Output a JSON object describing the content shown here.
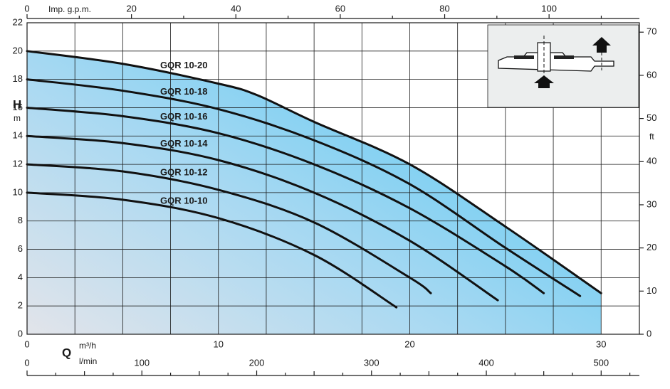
{
  "chart_data": {
    "type": "line",
    "xlabel": "Q",
    "xunit": "m³/h",
    "xlim": [
      0,
      32
    ],
    "xticks": [
      0,
      10,
      20,
      30
    ],
    "ylabel": "H",
    "yunit": "m",
    "ylim": [
      0,
      22
    ],
    "yticks": [
      0,
      2,
      4,
      6,
      8,
      10,
      12,
      14,
      16,
      18,
      20,
      22
    ],
    "y2label": "ft",
    "y2lim": [
      0,
      72.18
    ],
    "y2ticks": [
      0,
      10,
      20,
      30,
      40,
      50,
      60,
      70
    ],
    "x2label": "Imp. g.p.m.",
    "x2lim": [
      0,
      117.3
    ],
    "x2ticks": [
      0,
      20,
      40,
      60,
      80,
      100
    ],
    "x3label": "l/min",
    "x3lim": [
      0,
      533.3
    ],
    "x3ticks": [
      0,
      100,
      200,
      300,
      400,
      500
    ],
    "grid": true,
    "color": "#111111",
    "fill_color": "#5ac8f2",
    "series": [
      {
        "name": "GQR 10-20",
        "x": [
          0,
          5,
          10,
          12,
          15,
          20,
          25,
          30
        ],
        "values": [
          20,
          19.1,
          17.7,
          16.9,
          15,
          12,
          7.6,
          2.9
        ]
      },
      {
        "name": "GQR 10-18",
        "x": [
          0,
          5,
          10,
          15,
          20,
          25,
          28.9
        ],
        "values": [
          18,
          17.2,
          15.9,
          13.7,
          10.6,
          6.1,
          2.7
        ]
      },
      {
        "name": "GQR 10-16",
        "x": [
          0,
          5,
          10,
          15,
          20,
          25,
          27
        ],
        "values": [
          16,
          15.4,
          14.2,
          12,
          8.9,
          4.8,
          2.9
        ]
      },
      {
        "name": "GQR 10-14",
        "x": [
          0,
          5,
          10,
          15,
          20,
          24.6
        ],
        "values": [
          14,
          13.5,
          12.3,
          10,
          6.6,
          2.4
        ]
      },
      {
        "name": "GQR 10-12",
        "x": [
          0,
          5,
          10,
          15,
          20,
          21.1
        ],
        "values": [
          12,
          11.5,
          10.2,
          7.9,
          4,
          2.9
        ]
      },
      {
        "name": "GQR 10-10",
        "x": [
          0,
          5,
          10,
          15,
          19.3
        ],
        "values": [
          10,
          9.5,
          8.2,
          5.6,
          1.9
        ]
      }
    ]
  }
}
